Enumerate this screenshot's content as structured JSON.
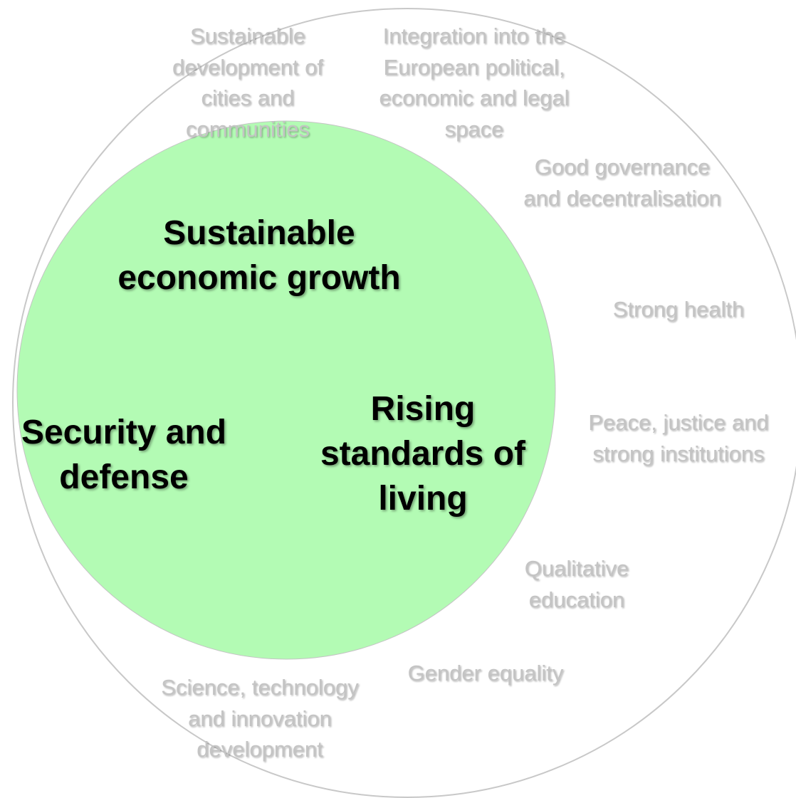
{
  "colors": {
    "inner_fill": "#b3fbb4",
    "outer_stroke": "#c8c8c8",
    "inner_text": "#000000",
    "outer_text": "#c4c4c4"
  },
  "inner_circle": {
    "labels": {
      "economic_growth": "Sustainable\neconomic growth",
      "security": "Security and\ndefense",
      "living_standards": "Rising\nstandards of\nliving"
    }
  },
  "outer_ring": {
    "labels": {
      "cities": "Sustainable\ndevelopment of\ncities and\ncommunities",
      "integration": "Integration into the\nEuropean political,\neconomic and legal\nspace",
      "governance": "Good governance\nand decentralisation",
      "health": "Strong health",
      "peace": "Peace, justice and\nstrong institutions",
      "education": "Qualitative\neducation",
      "gender": "Gender equality",
      "science": "Science, technology\nand innovation\ndevelopment"
    }
  }
}
